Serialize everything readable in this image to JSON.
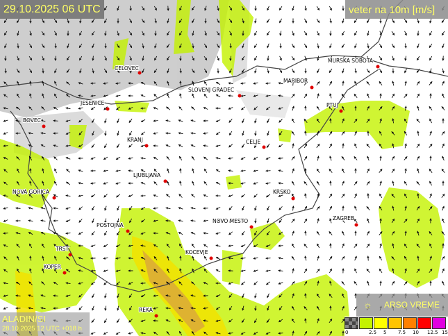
{
  "header": {
    "valid_time": "29.10.2025 06 UTC",
    "parameter": "veter na 10m [m/s]"
  },
  "model": {
    "name": "ALADIN/SI",
    "run": "28.10.2025 12 UTC +018 h"
  },
  "brand": {
    "name": "ARSO VREME",
    "icon": "sun-logo-icon"
  },
  "legend": {
    "colors": [
      "#555555",
      "#c4f200",
      "#ffff00",
      "#ffc400",
      "#ff8000",
      "#ff0000",
      "#e000e0"
    ],
    "labels": [
      "0",
      "2.5",
      "5",
      "7.5",
      "10",
      "12.5",
      "15"
    ]
  },
  "cities": [
    {
      "name": "CELOVEC"
    },
    {
      "name": "SLOVENJ GRADEC"
    },
    {
      "name": "MARIBOR"
    },
    {
      "name": "MURSKA SOBOTA"
    },
    {
      "name": "JESENICE"
    },
    {
      "name": "PTUJ"
    },
    {
      "name": "BOVEC"
    },
    {
      "name": "KRANJ"
    },
    {
      "name": "CELJE"
    },
    {
      "name": "LJUBLJANA"
    },
    {
      "name": "NOVA GORICA"
    },
    {
      "name": "KRSKO"
    },
    {
      "name": "ZAGREB"
    },
    {
      "name": "POSTOJNA"
    },
    {
      "name": "NOVO MESTO"
    },
    {
      "name": "TRST"
    },
    {
      "name": "KOCEVJE"
    },
    {
      "name": "KOPER"
    },
    {
      "name": "REKA"
    }
  ]
}
